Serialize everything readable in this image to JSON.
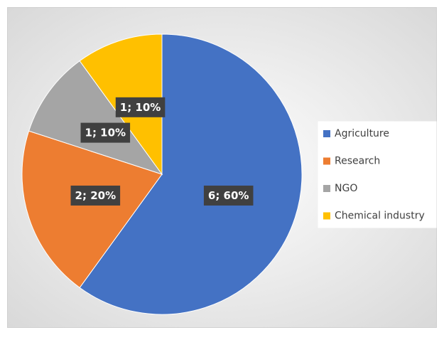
{
  "chart_data": {
    "type": "pie",
    "categories": [
      "Agriculture",
      "Research",
      "NGO",
      "Chemical industry"
    ],
    "values": [
      6,
      2,
      1,
      1
    ],
    "value_labels": [
      "6; 60%",
      "2; 20%",
      "1; 10%",
      "1; 10%"
    ],
    "colors": [
      "#4472c4",
      "#ed7d31",
      "#a5a5a5",
      "#ffc000"
    ],
    "legend": "right"
  }
}
